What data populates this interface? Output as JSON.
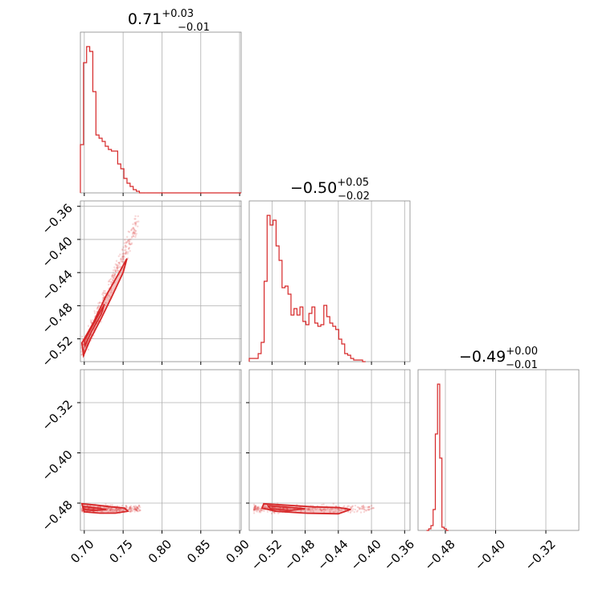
{
  "chart_data": {
    "type": "corner",
    "color": "#d62728",
    "diagonal_titles": [
      {
        "median": "0.71",
        "upper": "+0.03",
        "lower": "−0.01"
      },
      {
        "median": "−0.50",
        "upper": "+0.05",
        "lower": "−0.02"
      },
      {
        "median": "−0.49",
        "upper": "+0.00",
        "lower": "−0.01"
      }
    ],
    "parameters": [
      {
        "range": [
          0.695,
          0.902
        ],
        "ticks": [
          0.7,
          0.75,
          0.8,
          0.85,
          0.9
        ],
        "tick_labels": [
          "0.70",
          "0.75",
          "0.80",
          "0.85",
          "0.90"
        ]
      },
      {
        "range": [
          -0.5475,
          -0.3535
        ],
        "ticks": [
          -0.52,
          -0.48,
          -0.44,
          -0.4,
          -0.36
        ],
        "tick_labels": [
          "−0.52",
          "−0.48",
          "−0.44",
          "−0.40",
          "−0.36"
        ]
      },
      {
        "range": [
          -0.5235,
          -0.2675
        ],
        "ticks": [
          -0.48,
          -0.4,
          -0.32
        ],
        "tick_labels": [
          "−0.48",
          "−0.40",
          "−0.32"
        ]
      }
    ],
    "histograms": [
      {
        "bin_start": 0.695,
        "bin_width": 0.004,
        "heights": [
          0.3,
          0.81,
          0.91,
          0.88,
          0.63,
          0.36,
          0.34,
          0.32,
          0.29,
          0.27,
          0.26,
          0.26,
          0.18,
          0.15,
          0.09,
          0.06,
          0.04,
          0.02,
          0.01,
          0.0,
          0.0
        ]
      },
      {
        "bin_start": -0.5475,
        "bin_width": 0.0036,
        "heights": [
          0.02,
          0.02,
          0.02,
          0.05,
          0.12,
          0.5,
          0.91,
          0.85,
          0.88,
          0.72,
          0.63,
          0.46,
          0.47,
          0.42,
          0.29,
          0.33,
          0.29,
          0.34,
          0.25,
          0.23,
          0.3,
          0.34,
          0.24,
          0.22,
          0.23,
          0.35,
          0.28,
          0.24,
          0.22,
          0.2,
          0.14,
          0.11,
          0.05,
          0.04,
          0.02,
          0.01,
          0.01,
          0.01,
          0.0
        ]
      },
      {
        "bin_start": -0.51,
        "bin_width": 0.0035,
        "heights": [
          0.0,
          0.01,
          0.03,
          0.13,
          0.6,
          0.91,
          0.45,
          0.02,
          0.01,
          0.0
        ]
      }
    ],
    "scatter_ranges": {
      "x0_x1": {
        "x": [
          0.695,
          0.775
        ],
        "y": [
          -0.545,
          -0.37
        ]
      },
      "x0_x2": {
        "x": [
          0.695,
          0.775
        ],
        "y": [
          -0.505,
          -0.475
        ]
      },
      "x1_x2": {
        "x": [
          -0.545,
          -0.395
        ],
        "y": [
          -0.505,
          -0.475
        ]
      }
    },
    "grid": true
  }
}
